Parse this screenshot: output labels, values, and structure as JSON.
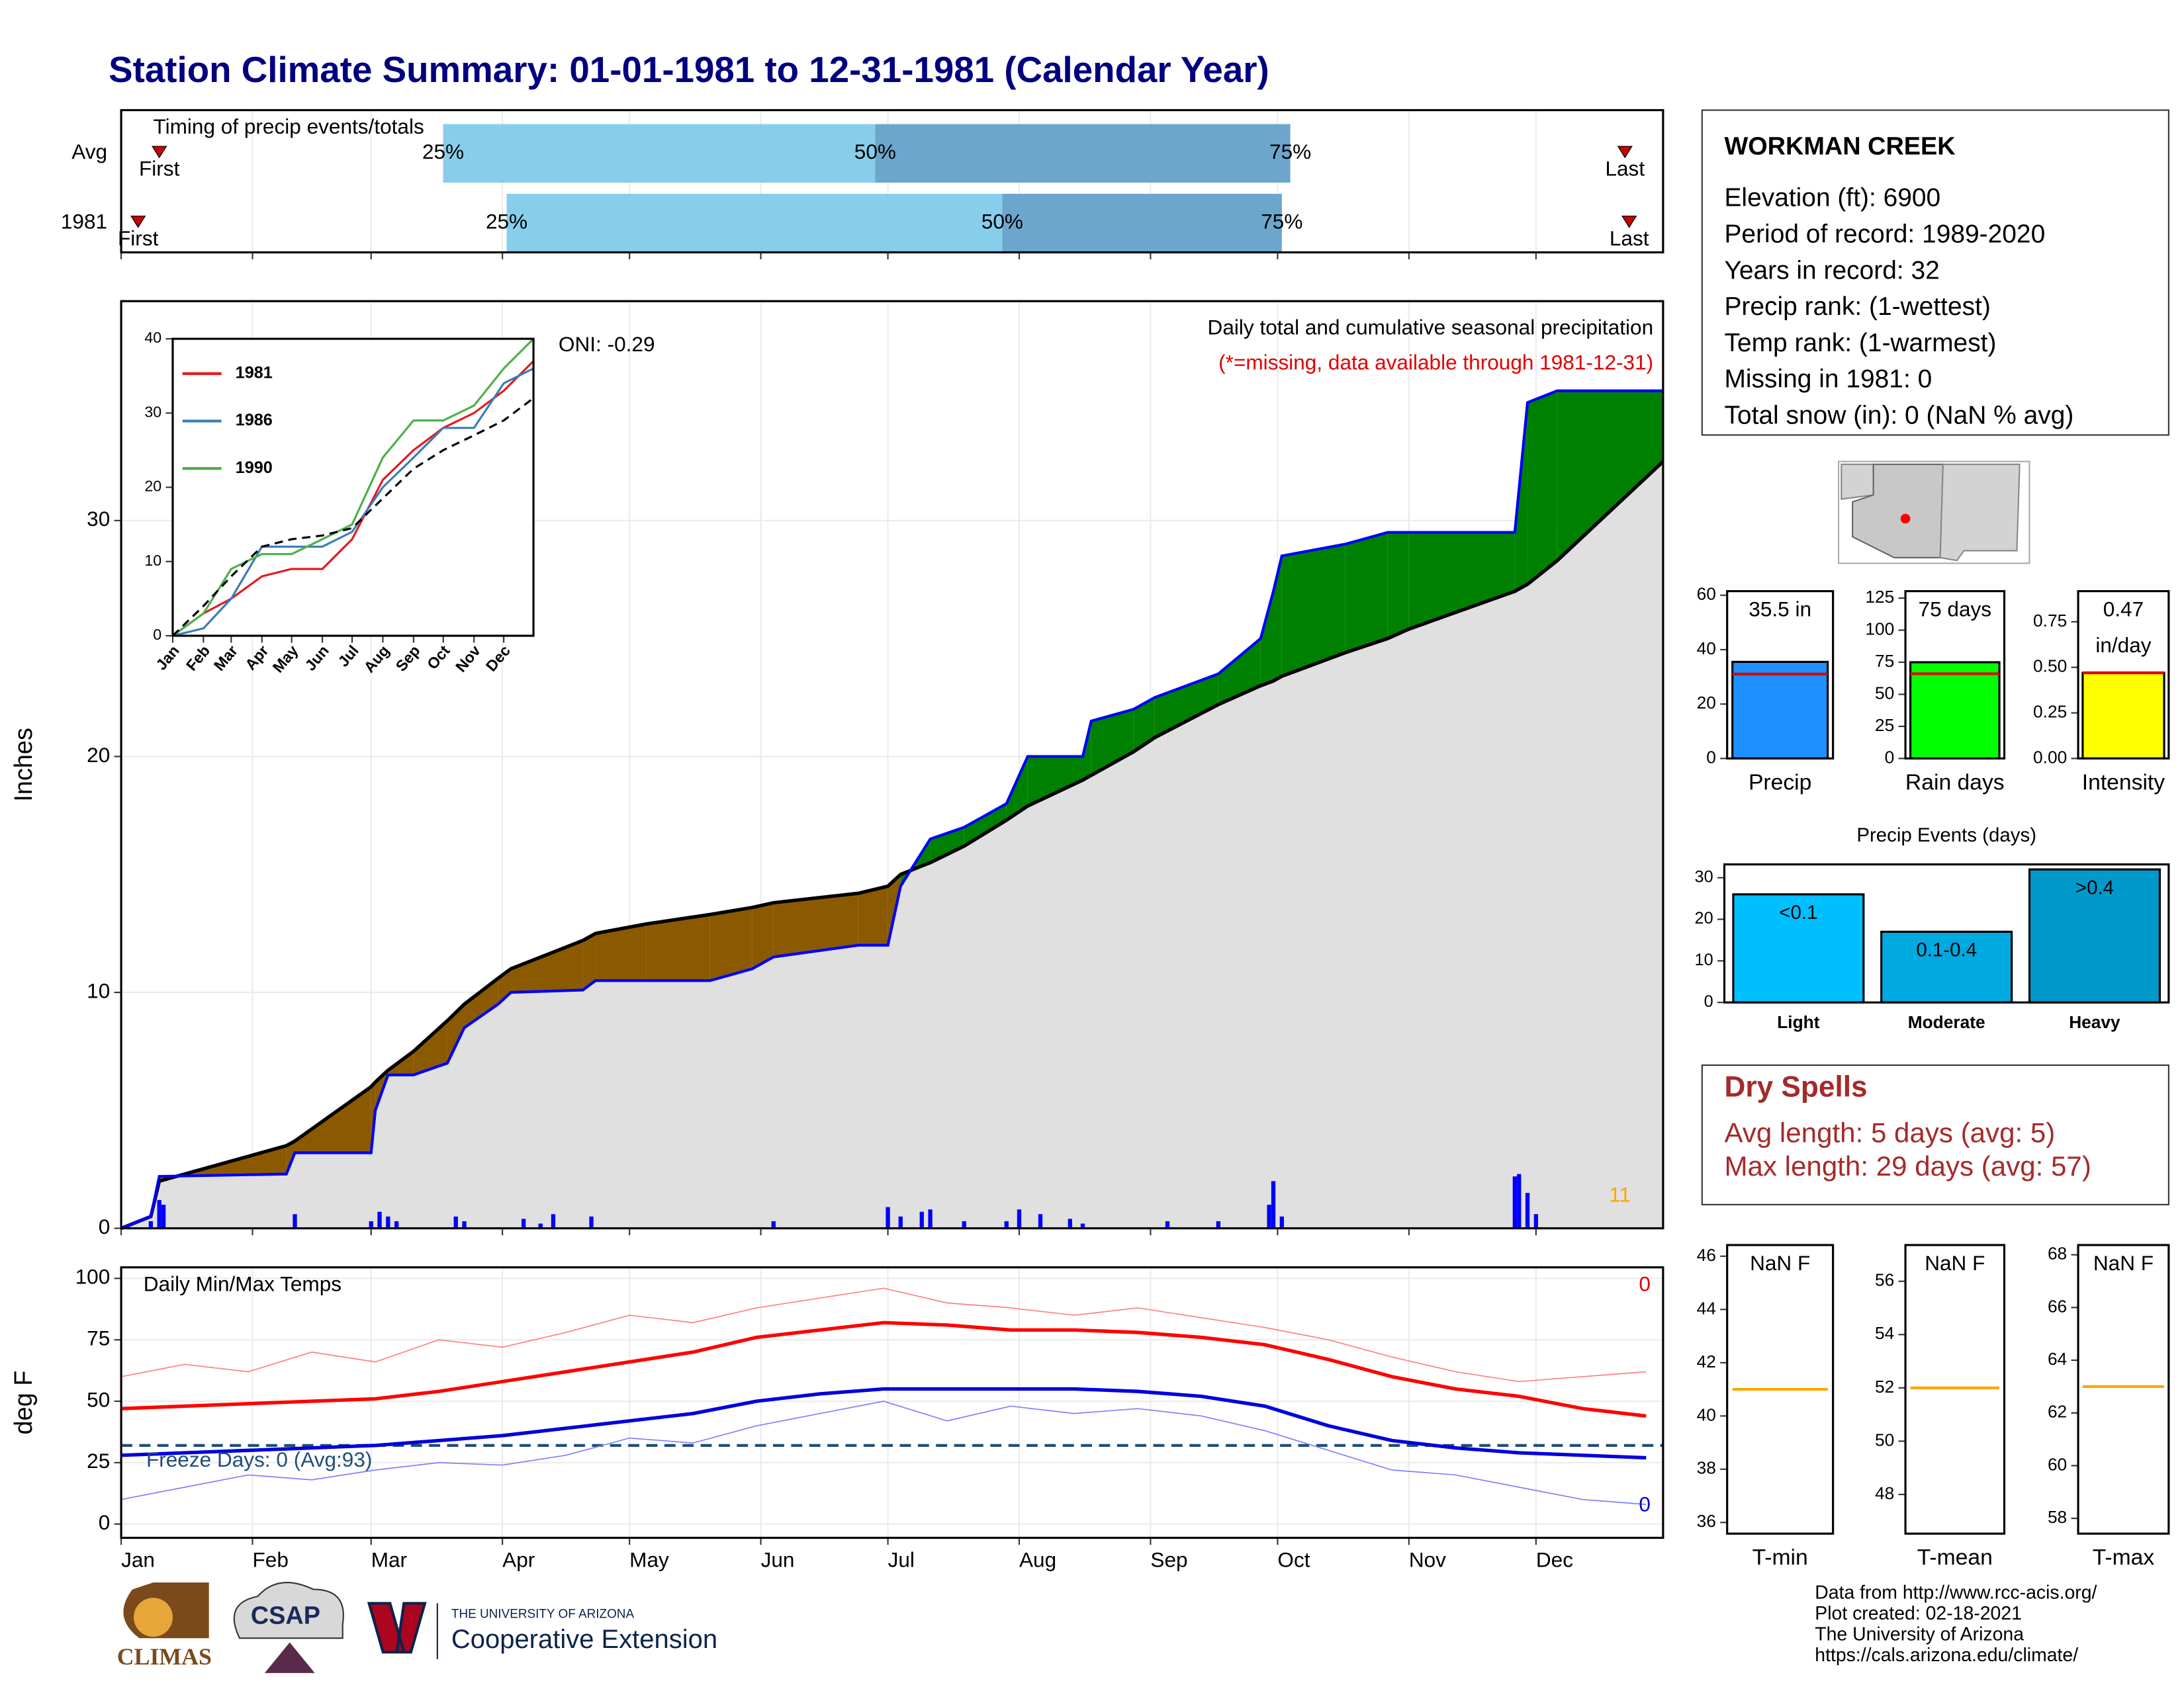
{
  "title": "Station Climate Summary: 01-01-1981 to 12-31-1981 (Calendar Year)",
  "station": {
    "name": "WORKMAN CREEK",
    "lines": [
      "Elevation (ft): 6900",
      "Period of record: 1989-2020",
      "Years in record: 32",
      "Precip rank:  (1-wettest)",
      "Temp rank:  (1-warmest)",
      "Missing in 1981: 0",
      "Total snow (in): 0 (NaN % avg)"
    ]
  },
  "dry_spells": {
    "title": "Dry Spells",
    "lines": [
      "Avg length: 5 days (avg: 5)",
      "Max length: 29 days (avg: 57)"
    ]
  },
  "footer": [
    "Data from http://www.rcc-acis.org/",
    "Plot created: 02-18-2021",
    "The University of Arizona",
    "https://cals.arizona.edu/climate/"
  ],
  "logos": {
    "climas": "CLIMAS",
    "csap": "CSAP",
    "ua": "THE UNIVERSITY OF ARIZONA",
    "coop": "Cooperative Extension"
  },
  "chart_data": [
    {
      "type": "timing",
      "title": "Timing of precip events/totals",
      "categories": [
        "Avg",
        "1981"
      ],
      "rows": [
        {
          "first": 10,
          "p25": 77,
          "p50": 179,
          "p75": 277,
          "last": 356
        },
        {
          "first": 5,
          "p25": 92,
          "p50": 209,
          "p75": 275,
          "last": 357
        }
      ],
      "marker_labels": {
        "first": "First",
        "p25": "25%",
        "p50": "50%",
        "p75": "75%",
        "last": "Last"
      },
      "colors": [
        "#87ceeb",
        "#6ca6cd"
      ],
      "marker_color": "#cc0000",
      "xlim": [
        1,
        365
      ],
      "xticks": [
        1,
        32,
        60,
        91,
        121,
        152,
        182,
        213,
        244,
        274,
        305,
        335
      ]
    },
    {
      "type": "area",
      "ylabel": "Inches",
      "annotation": "Daily total and cumulative seasonal precipitation",
      "note": "(*=missing, data available through 1981-12-31)",
      "oni": "ONI: -0.29",
      "count_label": "11",
      "x": [
        1,
        8,
        10,
        40,
        42,
        60,
        61,
        64,
        70,
        78,
        82,
        90,
        93,
        110,
        113,
        125,
        140,
        150,
        155,
        175,
        182,
        185,
        192,
        200,
        210,
        215,
        228,
        230,
        240,
        245,
        260,
        270,
        273,
        275,
        290,
        300,
        305,
        330,
        333,
        340,
        365
      ],
      "cumulative": {
        "color": "#0000ff",
        "values": [
          0,
          0.5,
          2.2,
          2.3,
          3.2,
          3.2,
          5.0,
          6.5,
          6.5,
          7.0,
          8.5,
          9.5,
          10.0,
          10.1,
          10.5,
          10.5,
          10.5,
          11.0,
          11.5,
          12.0,
          12.0,
          14.5,
          16.5,
          17.0,
          18.0,
          20.0,
          20.0,
          21.5,
          22.0,
          22.5,
          23.5,
          25.0,
          27.0,
          28.5,
          29.0,
          29.5,
          29.5,
          29.5,
          35.0,
          35.5,
          35.5
        ]
      },
      "average": {
        "color": "#000000",
        "fill": "#e0e0e0",
        "values": [
          0,
          0.5,
          2.0,
          3.5,
          3.7,
          6.0,
          6.2,
          6.7,
          7.5,
          8.8,
          9.5,
          10.6,
          11.0,
          12.2,
          12.5,
          12.9,
          13.3,
          13.6,
          13.8,
          14.2,
          14.5,
          15.0,
          15.5,
          16.2,
          17.3,
          17.9,
          19.0,
          19.2,
          20.2,
          20.8,
          22.2,
          23.0,
          23.2,
          23.4,
          24.4,
          25.0,
          25.4,
          27.0,
          27.3,
          28.3,
          32.5
        ]
      },
      "above_color": "#008000",
      "below_color": "#8b5a00",
      "daily": {
        "color": "#0000ff",
        "x": [
          8,
          10,
          11,
          42,
          60,
          62,
          64,
          66,
          80,
          82,
          96,
          100,
          103,
          112,
          155,
          182,
          185,
          190,
          192,
          200,
          210,
          213,
          218,
          225,
          228,
          248,
          260,
          272,
          273,
          275,
          330,
          331,
          333,
          335
        ],
        "values": [
          0.3,
          1.2,
          1.0,
          0.6,
          0.3,
          0.7,
          0.5,
          0.3,
          0.5,
          0.3,
          0.4,
          0.2,
          0.6,
          0.5,
          0.3,
          0.9,
          0.5,
          0.7,
          0.8,
          0.3,
          0.3,
          0.8,
          0.6,
          0.4,
          0.2,
          0.3,
          0.3,
          1.0,
          2.0,
          0.5,
          2.2,
          2.3,
          1.5,
          0.6
        ]
      },
      "xlim": [
        1,
        365
      ],
      "ylim": [
        0,
        39.3
      ],
      "yticks": [
        0,
        10,
        20,
        30
      ],
      "xticks": [
        1,
        32,
        60,
        91,
        121,
        152,
        182,
        213,
        244,
        274,
        305,
        335
      ],
      "grid": true
    },
    {
      "type": "line",
      "x": [
        1,
        32,
        60,
        91,
        121,
        152,
        182,
        213,
        244,
        274,
        305,
        335,
        365
      ],
      "series": [
        {
          "name": "1981",
          "color": "#e41a1c",
          "linewidth": 1.5,
          "values": [
            0,
            3,
            5,
            8,
            9,
            9,
            13,
            21,
            25,
            28,
            30,
            33,
            37
          ]
        },
        {
          "name": "1986",
          "color": "#377eb8",
          "linewidth": 1.5,
          "values": [
            0,
            1,
            5,
            12,
            12,
            12,
            14,
            20,
            24,
            28,
            28,
            34,
            36
          ]
        },
        {
          "name": "1990",
          "color": "#4daf4a",
          "linewidth": 1.5,
          "values": [
            0,
            3,
            9,
            11,
            11,
            13,
            15,
            24,
            29,
            29,
            31,
            36,
            40
          ]
        },
        {
          "color": "#000000",
          "linewidth": 1.5,
          "dash": true,
          "values": [
            0,
            4,
            8,
            12,
            13,
            13.5,
            14.5,
            18.5,
            22.5,
            25,
            27,
            29,
            32
          ]
        }
      ],
      "legend": "top-left",
      "xlim": [
        1,
        365
      ],
      "ylim": [
        0,
        40
      ],
      "yticks": [
        0,
        10,
        20,
        30,
        40
      ],
      "xticks": [
        {
          "value": 1,
          "label": "Jan"
        },
        {
          "value": 32,
          "label": "Feb"
        },
        {
          "value": 60,
          "label": "Mar"
        },
        {
          "value": 91,
          "label": "Apr"
        },
        {
          "value": 121,
          "label": "May"
        },
        {
          "value": 152,
          "label": "Jun"
        },
        {
          "value": 182,
          "label": "Jul"
        },
        {
          "value": 213,
          "label": "Aug"
        },
        {
          "value": 244,
          "label": "Sep"
        },
        {
          "value": 274,
          "label": "Oct"
        },
        {
          "value": 305,
          "label": "Nov"
        },
        {
          "value": 335,
          "label": "Dec"
        }
      ]
    },
    {
      "type": "line",
      "title": "Daily Min/Max Temps",
      "ylabel": "deg F",
      "freeze_label": "Freeze Days: 0 (Avg:93)",
      "max_count": "0",
      "min_count": "0",
      "x": [
        1,
        16,
        31,
        46,
        61,
        76,
        91,
        106,
        121,
        136,
        151,
        166,
        181,
        196,
        211,
        226,
        241,
        256,
        271,
        286,
        301,
        316,
        331,
        346,
        361
      ],
      "series": [
        {
          "color": "#ff8080",
          "linewidth": 0.8,
          "values": [
            60,
            65,
            62,
            70,
            66,
            75,
            72,
            78,
            85,
            82,
            88,
            92,
            96,
            90,
            88,
            85,
            88,
            84,
            80,
            75,
            68,
            62,
            58,
            60,
            62
          ]
        },
        {
          "color": "#ff0000",
          "linewidth": 2.5,
          "values": [
            47,
            48,
            49,
            50,
            51,
            54,
            58,
            62,
            66,
            70,
            76,
            79,
            82,
            81,
            79,
            79,
            78,
            76,
            73,
            67,
            60,
            55,
            52,
            47,
            44
          ]
        },
        {
          "color": "#0000dd",
          "linewidth": 2.5,
          "values": [
            28,
            29,
            30,
            31,
            32,
            34,
            36,
            39,
            42,
            45,
            50,
            53,
            55,
            55,
            55,
            55,
            54,
            52,
            48,
            40,
            34,
            31,
            29,
            28,
            27
          ]
        },
        {
          "color": "#8080ff",
          "linewidth": 0.8,
          "values": [
            10,
            15,
            20,
            18,
            22,
            25,
            24,
            28,
            35,
            33,
            40,
            45,
            50,
            42,
            48,
            45,
            47,
            44,
            38,
            30,
            22,
            20,
            15,
            10,
            8
          ]
        }
      ],
      "hline": 32,
      "hline_color": "#1f4e79",
      "xlim": [
        1,
        365
      ],
      "ylim": [
        -5.6,
        104.5
      ],
      "yticks": [
        0,
        25,
        50,
        75,
        100
      ],
      "grid": true,
      "xticks": [
        {
          "value": 1,
          "label": "Jan"
        },
        {
          "value": 32,
          "label": "Feb"
        },
        {
          "value": 60,
          "label": "Mar"
        },
        {
          "value": 91,
          "label": "Apr"
        },
        {
          "value": 121,
          "label": "May"
        },
        {
          "value": 152,
          "label": "Jun"
        },
        {
          "value": 182,
          "label": "Jul"
        },
        {
          "value": 213,
          "label": "Aug"
        },
        {
          "value": 244,
          "label": "Sep"
        },
        {
          "value": 274,
          "label": "Oct"
        },
        {
          "value": 305,
          "label": "Nov"
        },
        {
          "value": 335,
          "label": "Dec"
        }
      ]
    },
    {
      "type": "bar",
      "xlabel": "Precip",
      "value": 35.5,
      "value_label": "35.5 in",
      "average": 31,
      "color": "#1e90ff",
      "avg_color": "#e00000",
      "ylim": [
        0,
        61.5
      ],
      "yticks": [
        0,
        20,
        40,
        60
      ]
    },
    {
      "type": "bar",
      "xlabel": "Rain days",
      "value": 75,
      "value_label": "75 days",
      "average": 66,
      "color": "#00ff00",
      "avg_color": "#e00000",
      "ylim": [
        0,
        130.4
      ],
      "yticks": [
        0,
        25,
        50,
        75,
        100,
        125
      ]
    },
    {
      "type": "bar",
      "xlabel": "Intensity",
      "value": 0.47,
      "value_label": "0.47",
      "unit_label": "in/day",
      "average": 0.47,
      "color": "#ffff00",
      "avg_color": "#e00000",
      "ylim": [
        0,
        0.918
      ],
      "yticks": [
        {
          "value": 0,
          "label": "0.00"
        },
        {
          "value": 0.25,
          "label": "0.25"
        },
        {
          "value": 0.5,
          "label": "0.50"
        },
        {
          "value": 0.75,
          "label": "0.75"
        }
      ]
    },
    {
      "type": "bar",
      "title": "Precip Events (days)",
      "categories": [
        "Light",
        "Moderate",
        "Heavy"
      ],
      "values": [
        26,
        17,
        32
      ],
      "value_labels": [
        "<0.1",
        "0.1-0.4",
        ">0.4"
      ],
      "colors": [
        "#00bfff",
        "#00a9e0",
        "#0099cc"
      ],
      "ylim": [
        0,
        33.2
      ],
      "yticks": [
        0,
        10,
        20,
        30
      ]
    },
    {
      "type": "bar",
      "xlabel": "T-min",
      "value": null,
      "value_label": "NaN F",
      "average": 41,
      "avg_color": "#ffa500",
      "ylim": [
        35.58,
        46.42
      ],
      "yticks": [
        36,
        38,
        40,
        42,
        44,
        46
      ]
    },
    {
      "type": "bar",
      "xlabel": "T-mean",
      "value": null,
      "value_label": "NaN F",
      "average": 52,
      "avg_color": "#ffa500",
      "ylim": [
        46.53,
        57.36
      ],
      "yticks": [
        48,
        50,
        52,
        54,
        56
      ]
    },
    {
      "type": "bar",
      "xlabel": "T-max",
      "value": null,
      "value_label": "NaN F",
      "average": 63,
      "avg_color": "#ffa500",
      "ylim": [
        57.42,
        68.37
      ],
      "yticks": [
        58,
        60,
        62,
        64,
        66,
        68
      ]
    }
  ]
}
